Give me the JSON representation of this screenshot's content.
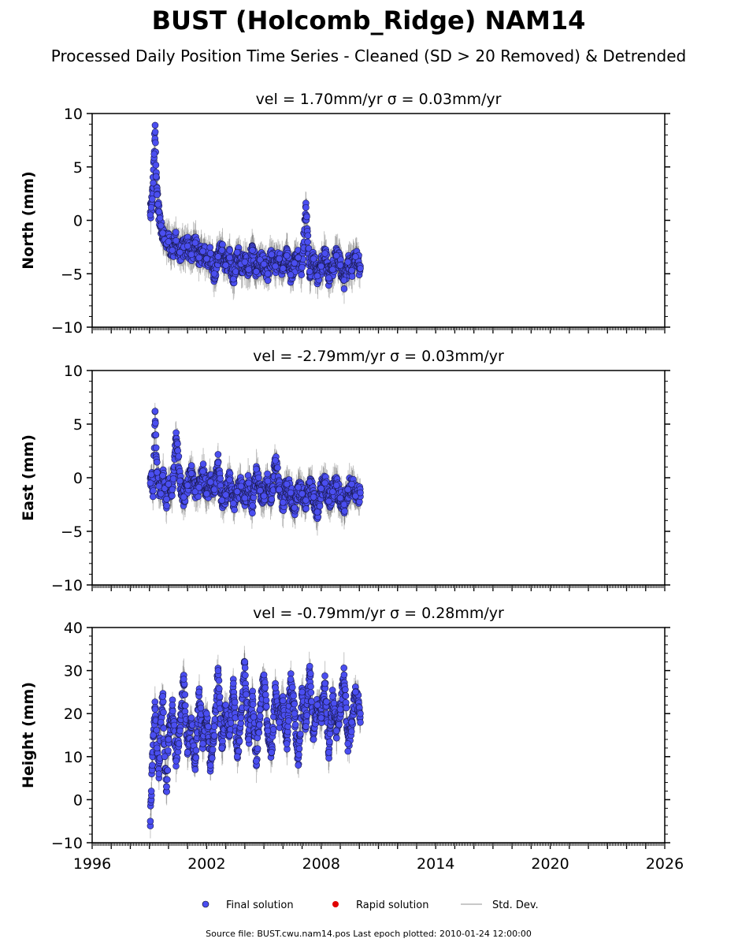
{
  "chart_data": {
    "type": "scatter",
    "title": "BUST (Holcomb_Ridge) NAM14",
    "subtitle": "Processed Daily Position Time Series - Cleaned (SD > 20 Removed) & Detrended",
    "x_range": [
      1996,
      2026
    ],
    "x_ticks": [
      1996,
      2002,
      2008,
      2014,
      2020,
      2026
    ],
    "panels": [
      {
        "ylabel": "North (mm)",
        "title": "vel = 1.70mm/yr   σ = 0.03mm/yr",
        "ylim": [
          -10,
          10
        ],
        "y_ticks": [
          -10,
          -5,
          0,
          5,
          10
        ],
        "y_tick_labels": [
          "−10",
          "−5",
          "0",
          "5",
          "10"
        ],
        "series": {
          "x": [
            1999.05,
            1999.1,
            1999.15,
            1999.2,
            1999.25,
            1999.3,
            1999.35,
            1999.4,
            1999.45,
            1999.5,
            1999.55,
            1999.6,
            1999.7,
            1999.8,
            1999.9,
            2000.0,
            2000.2,
            2000.4,
            2000.6,
            2000.8,
            2001.0,
            2001.2,
            2001.4,
            2001.6,
            2001.8,
            2002.0,
            2002.2,
            2002.4,
            2002.6,
            2002.8,
            2003.0,
            2003.2,
            2003.4,
            2003.6,
            2003.8,
            2004.0,
            2004.2,
            2004.4,
            2004.6,
            2004.8,
            2005.0,
            2005.2,
            2005.4,
            2005.6,
            2005.8,
            2006.0,
            2006.2,
            2006.4,
            2006.6,
            2006.8,
            2007.0,
            2007.2,
            2007.4,
            2007.6,
            2007.8,
            2008.0,
            2008.2,
            2008.4,
            2008.6,
            2008.8,
            2009.0,
            2009.2,
            2009.4,
            2009.6,
            2009.8,
            2010.05
          ],
          "y": [
            0.5,
            1.2,
            2.0,
            3.5,
            6.2,
            8.9,
            4.1,
            2.4,
            1.5,
            0.8,
            0.2,
            -0.5,
            -1.2,
            -1.8,
            -2.2,
            -2.0,
            -2.8,
            -1.9,
            -3.0,
            -2.5,
            -2.4,
            -3.2,
            -2.1,
            -3.5,
            -2.9,
            -3.6,
            -3.1,
            -5.0,
            -3.4,
            -2.8,
            -4.2,
            -3.5,
            -5.5,
            -3.0,
            -4.1,
            -3.9,
            -4.6,
            -2.8,
            -4.8,
            -3.7,
            -4.1,
            -5.0,
            -3.2,
            -4.3,
            -3.6,
            -4.5,
            -3.3,
            -5.1,
            -4.0,
            -3.5,
            -4.4,
            1.2,
            -4.8,
            -3.6,
            -5.2,
            -4.3,
            -3.1,
            -5.4,
            -4.6,
            -3.3,
            -4.2,
            -5.6,
            -3.9,
            -4.7,
            -3.4,
            -4.5
          ]
        }
      },
      {
        "ylabel": "East (mm)",
        "title": "vel = -2.79mm/yr   σ = 0.03mm/yr",
        "ylim": [
          -10,
          10
        ],
        "y_ticks": [
          -10,
          -5,
          0,
          5,
          10
        ],
        "y_tick_labels": [
          "−10",
          "−5",
          "0",
          "5",
          "10"
        ],
        "series": {
          "x": [
            1999.05,
            1999.1,
            1999.2,
            1999.3,
            1999.35,
            1999.4,
            1999.5,
            1999.6,
            1999.7,
            1999.8,
            1999.9,
            2000.0,
            2000.2,
            2000.4,
            2000.6,
            2000.8,
            2001.0,
            2001.2,
            2001.4,
            2001.6,
            2001.8,
            2002.0,
            2002.2,
            2002.4,
            2002.6,
            2002.8,
            2003.0,
            2003.2,
            2003.4,
            2003.6,
            2003.8,
            2004.0,
            2004.2,
            2004.4,
            2004.6,
            2004.8,
            2005.0,
            2005.2,
            2005.4,
            2005.6,
            2005.8,
            2006.0,
            2006.2,
            2006.4,
            2006.6,
            2006.8,
            2007.0,
            2007.2,
            2007.4,
            2007.6,
            2007.8,
            2008.0,
            2008.2,
            2008.4,
            2008.6,
            2008.8,
            2009.0,
            2009.2,
            2009.4,
            2009.6,
            2009.8,
            2010.05
          ],
          "y": [
            -0.5,
            0.3,
            -1.2,
            6.2,
            2.8,
            0.5,
            -0.8,
            -1.5,
            0.2,
            -1.0,
            -2.0,
            -0.6,
            -1.1,
            4.2,
            -0.3,
            -1.8,
            -0.7,
            0.4,
            -1.3,
            -0.9,
            0.6,
            -1.5,
            -0.4,
            -1.1,
            1.4,
            -2.1,
            -1.6,
            -0.2,
            -2.4,
            -1.3,
            -0.8,
            -1.9,
            -0.5,
            -2.6,
            0.8,
            -1.2,
            -1.7,
            -0.3,
            -2.0,
            1.6,
            -1.1,
            -2.3,
            -0.6,
            -1.4,
            -2.8,
            -0.9,
            -1.5,
            -2.1,
            -0.4,
            -1.8,
            -3.2,
            -1.0,
            -0.5,
            -2.2,
            -1.3,
            -0.7,
            -1.9,
            -2.5,
            -1.1,
            -0.6,
            -1.7,
            -1.4
          ]
        }
      },
      {
        "ylabel": "Height (mm)",
        "title": "vel = -0.79mm/yr   σ = 0.28mm/yr",
        "ylim": [
          -10,
          40
        ],
        "y_ticks": [
          -10,
          0,
          10,
          20,
          30,
          40
        ],
        "y_tick_labels": [
          "−10",
          "0",
          "10",
          "20",
          "30",
          "40"
        ],
        "series": {
          "x": [
            1999.05,
            1999.1,
            1999.15,
            1999.2,
            1999.3,
            1999.4,
            1999.5,
            1999.6,
            1999.7,
            1999.8,
            1999.9,
            2000.0,
            2000.2,
            2000.4,
            2000.6,
            2000.8,
            2001.0,
            2001.2,
            2001.4,
            2001.6,
            2001.8,
            2002.0,
            2002.2,
            2002.4,
            2002.6,
            2002.8,
            2003.0,
            2003.2,
            2003.4,
            2003.6,
            2003.8,
            2004.0,
            2004.2,
            2004.4,
            2004.6,
            2004.8,
            2005.0,
            2005.2,
            2005.4,
            2005.6,
            2005.8,
            2006.0,
            2006.2,
            2006.4,
            2006.6,
            2006.8,
            2007.0,
            2007.2,
            2007.4,
            2007.6,
            2007.8,
            2008.0,
            2008.2,
            2008.4,
            2008.6,
            2008.8,
            2009.0,
            2009.2,
            2009.4,
            2009.6,
            2009.8,
            2010.05
          ],
          "y": [
            -5,
            2,
            8,
            15,
            21,
            12,
            6,
            18,
            24,
            10,
            3,
            14,
            22,
            9,
            16,
            28,
            11,
            19,
            7,
            25,
            13,
            20,
            8,
            17,
            30,
            12,
            22,
            15,
            27,
            10,
            19,
            32,
            14,
            24,
            9,
            21,
            29,
            16,
            11,
            26,
            18,
            23,
            13,
            28,
            20,
            8,
            25,
            17,
            31,
            14,
            22,
            19,
            27,
            11,
            24,
            16,
            21,
            29,
            13,
            18,
            25,
            20
          ]
        }
      }
    ],
    "legend": {
      "placement": "bottom-center",
      "entries": [
        {
          "label": "Final solution",
          "color": "#4a4ef0"
        },
        {
          "label": "Rapid solution",
          "color": "#e00000"
        },
        {
          "label": "Std. Dev.",
          "color": "#c8c8c8"
        }
      ]
    },
    "grid": false
  },
  "footer": "Source file: BUST.cwu.nam14.pos  Last epoch plotted: 2010-01-24 12:00:00",
  "colors": {
    "final": "#4a4ef0",
    "rapid": "#e00000",
    "stddev": "#c8c8c8",
    "stddev_dark": "#555555"
  }
}
